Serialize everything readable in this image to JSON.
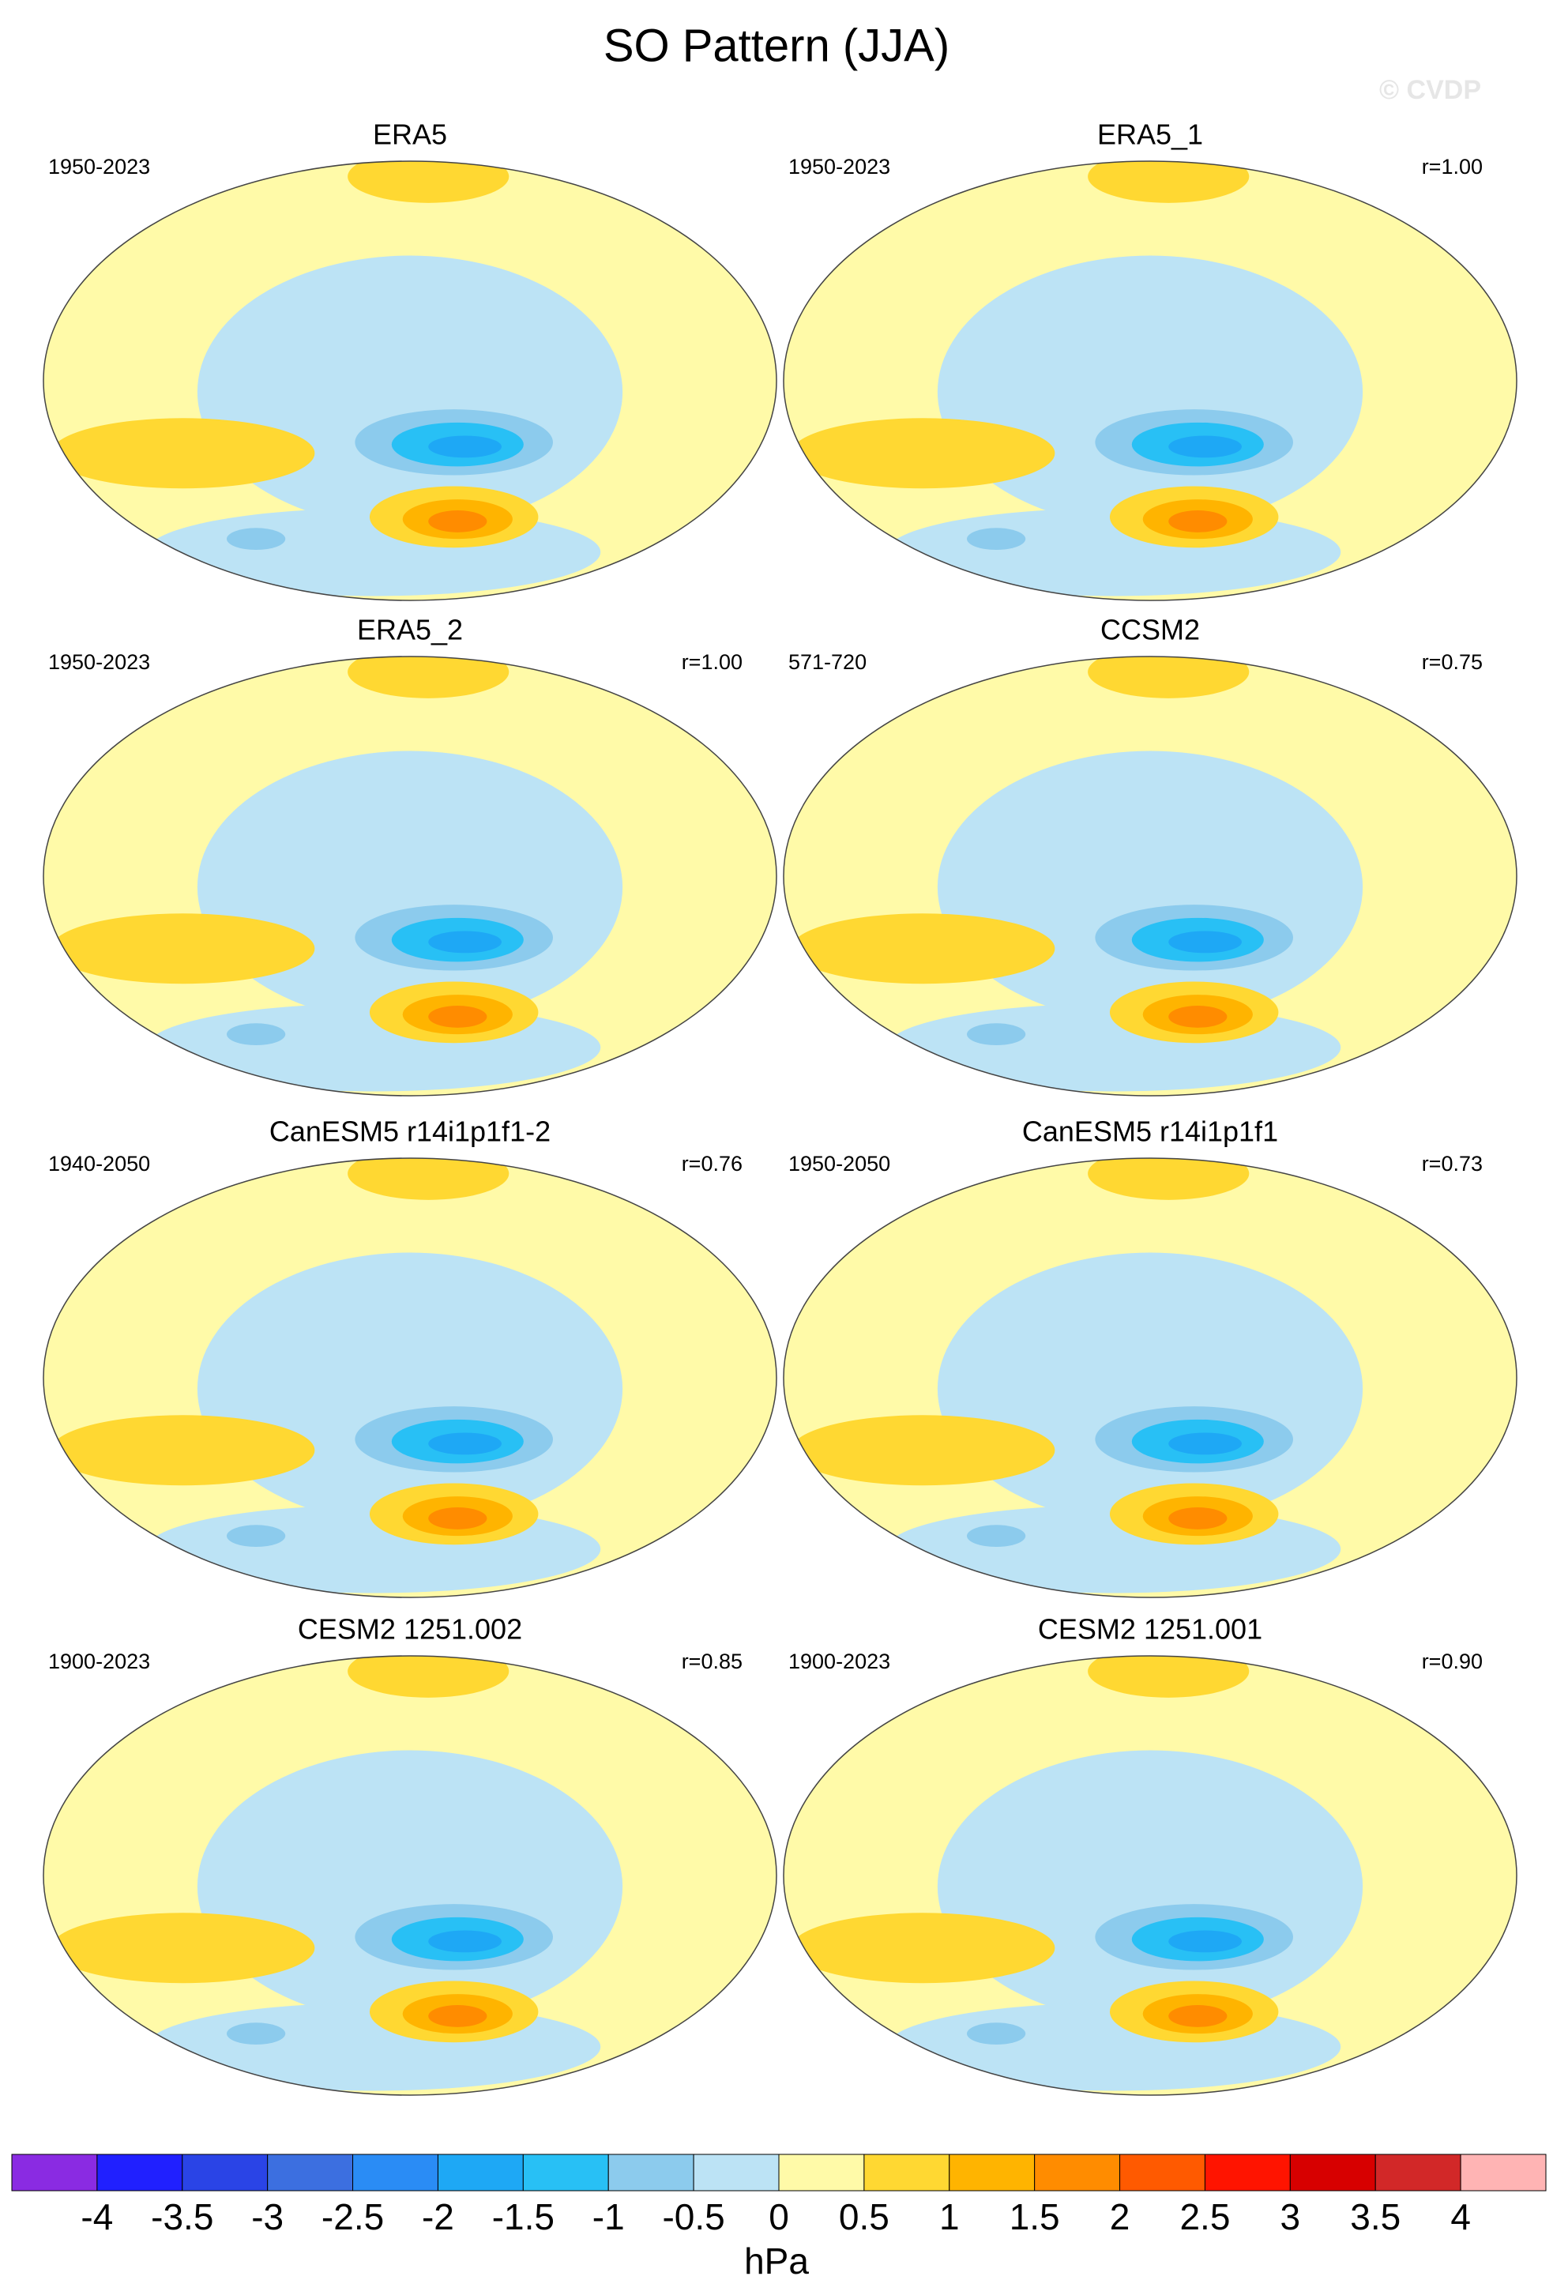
{
  "title": "SO Pattern (JJA)",
  "watermark": "© CVDP",
  "panels": [
    {
      "title": "ERA5",
      "years": "1950-2023"
    },
    {
      "title": "ERA5_1",
      "years": "1950-2023",
      "r": "r=1.00"
    },
    {
      "title": "ERA5_2",
      "years": "1950-2023",
      "r": "r=1.00"
    },
    {
      "title": "CCSM2",
      "years": "571-720",
      "r": "r=0.75"
    },
    {
      "title": "CanESM5 r14i1p1f1-2",
      "years": "1940-2050",
      "r": "r=0.76"
    },
    {
      "title": "CanESM5 r14i1p1f1",
      "years": "1950-2050",
      "r": "r=0.73"
    },
    {
      "title": "CESM2 1251.002",
      "years": "1900-2023",
      "r": "r=0.85"
    },
    {
      "title": "CESM2 1251.001",
      "years": "1900-2023",
      "r": "r=0.90"
    }
  ],
  "colorbar": {
    "levels": [
      -4,
      -3.5,
      -3,
      -2.5,
      -2,
      -1.5,
      -1,
      -0.5,
      0,
      0.5,
      1,
      1.5,
      2,
      2.5,
      3,
      3.5,
      4
    ],
    "colors": [
      "#8a2be2",
      "#2020ff",
      "#2a44e6",
      "#3c6fe0",
      "#2a8cf5",
      "#1ea8f5",
      "#28c0f5",
      "#8ccbed",
      "#bce3f5",
      "#fffaa8",
      "#ffd832",
      "#ffb400",
      "#ff8c00",
      "#ff5a00",
      "#ff1400",
      "#d70000",
      "#d22828",
      "#ffb4b4"
    ],
    "unit": "hPa"
  }
}
